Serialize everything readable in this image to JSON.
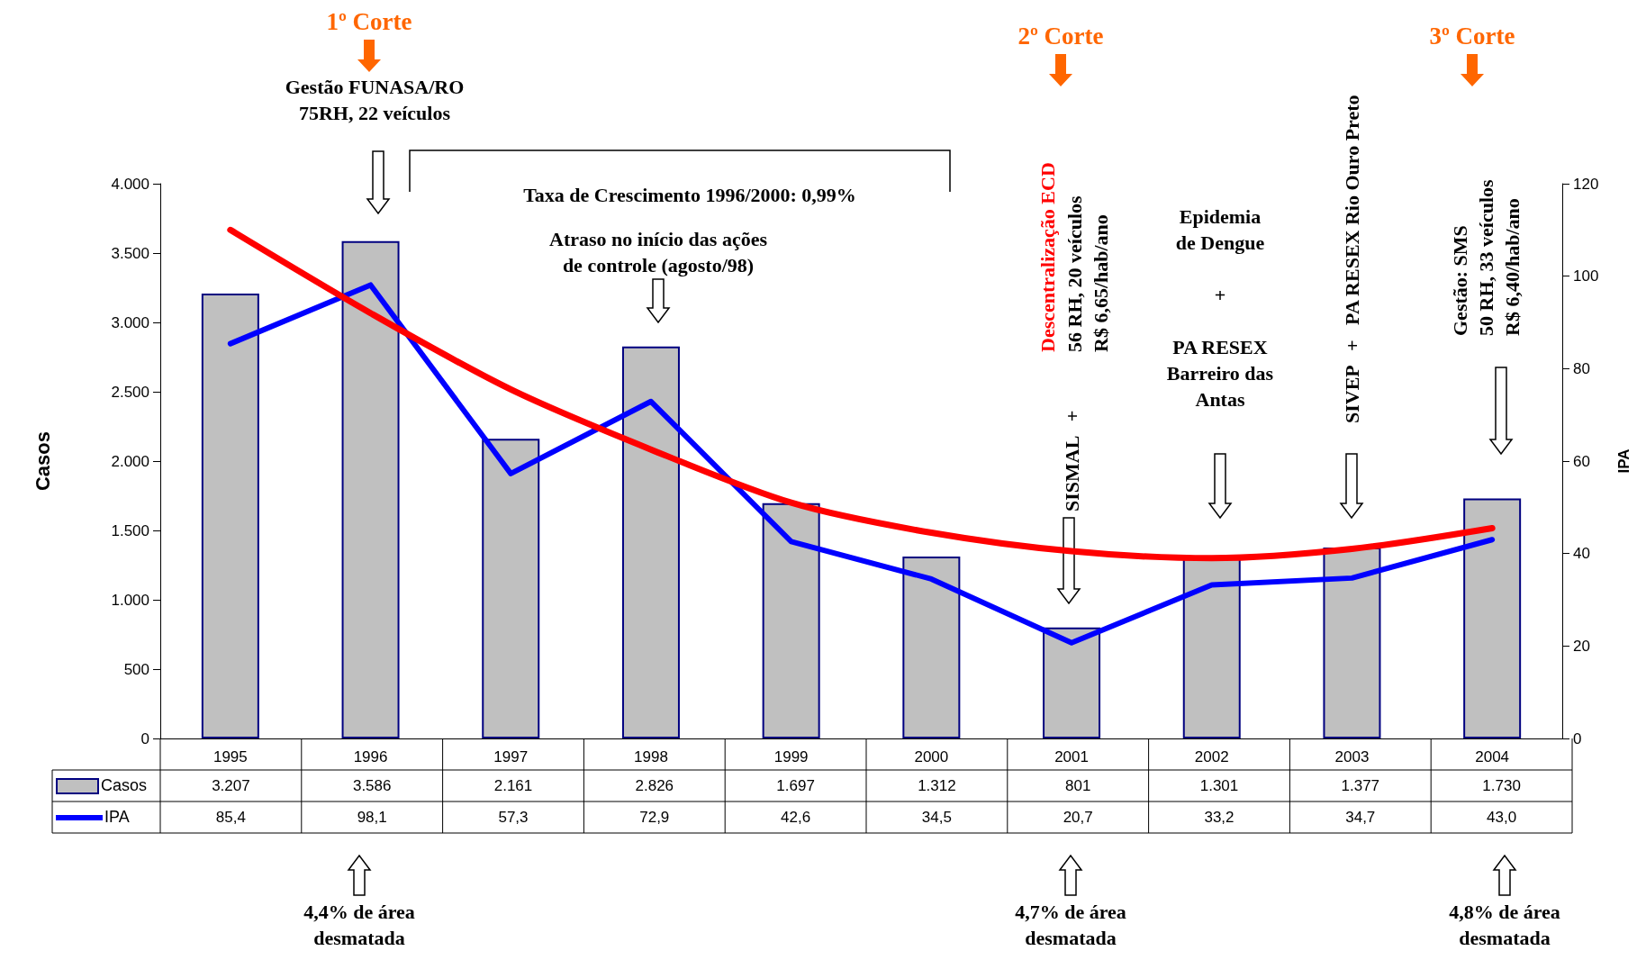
{
  "chart_data": {
    "type": "bar",
    "categories": [
      "1995",
      "1996",
      "1997",
      "1998",
      "1999",
      "2000",
      "2001",
      "2002",
      "2003",
      "2004"
    ],
    "series": [
      {
        "name": "Casos",
        "color": "#c0c0c0",
        "values": [
          3207,
          3586,
          2161,
          2826,
          1697,
          1312,
          801,
          1301,
          1377,
          1730
        ],
        "value_labels": [
          "3.207",
          "3.586",
          "2.161",
          "2.826",
          "1.697",
          "1.312",
          "801",
          "1.301",
          "1.377",
          "1.730"
        ]
      },
      {
        "name": "IPA",
        "type": "line",
        "axis": "y2",
        "color": "#0000ff",
        "values": [
          85.4,
          98.1,
          57.3,
          72.9,
          42.6,
          34.5,
          20.7,
          33.2,
          34.7,
          43.0
        ],
        "value_labels": [
          "85,4",
          "98,1",
          "57,3",
          "72,9",
          "42,6",
          "34,5",
          "20,7",
          "33,2",
          "34,7",
          "43,0"
        ]
      },
      {
        "type": "line",
        "axis": "y2",
        "color": "#ff0000",
        "values": [
          110,
          92,
          75.5,
          62.5,
          51,
          44.5,
          40.5,
          39,
          41,
          45.5
        ]
      }
    ],
    "ylabel": "Casos",
    "y2label": "IPA",
    "ylim": [
      0,
      4000
    ],
    "yticks": [
      {
        "value": 0,
        "label": "0"
      },
      {
        "value": 500,
        "label": "500"
      },
      {
        "value": 1000,
        "label": "1.000"
      },
      {
        "value": 1500,
        "label": "1.500"
      },
      {
        "value": 2000,
        "label": "2.000"
      },
      {
        "value": 2500,
        "label": "2.500"
      },
      {
        "value": 3000,
        "label": "3.000"
      },
      {
        "value": 3500,
        "label": "3.500"
      },
      {
        "value": 4000,
        "label": "4.000"
      }
    ],
    "y2lim": [
      0,
      120
    ],
    "y2ticks": [
      0,
      20,
      40,
      60,
      80,
      100,
      120
    ],
    "grid": false,
    "legend": "bottom left",
    "marker": "none",
    "line_style": "solid",
    "annotations": [
      "1º Corte",
      "Gestão FUNASA/RO\n75RH, 22 veículos",
      "Taxa de Crescimento 1996/2000: 0,99%",
      "Atraso no início das ações\nde controle (agosto/98)",
      "2º Corte",
      "Descentralização ECD",
      "56 RH, 20 veículos\nR$ 6,65/hab/ano",
      "SISMAL   +",
      "Epidemia\nde Dengue\n\n+\n\nPA RESEX\nBarreiro das\nAntas",
      "SIVEP   +   PA RESEX Rio Ouro Preto",
      "3º Corte",
      "Gestão: SMS\n50 RH, 33 veículos\nR$ 6,40/hab/ano",
      "4,4% de área\ndesmatada",
      "4,7% de área\ndesmatada",
      "4,8% de área\ndesmatada"
    ]
  }
}
